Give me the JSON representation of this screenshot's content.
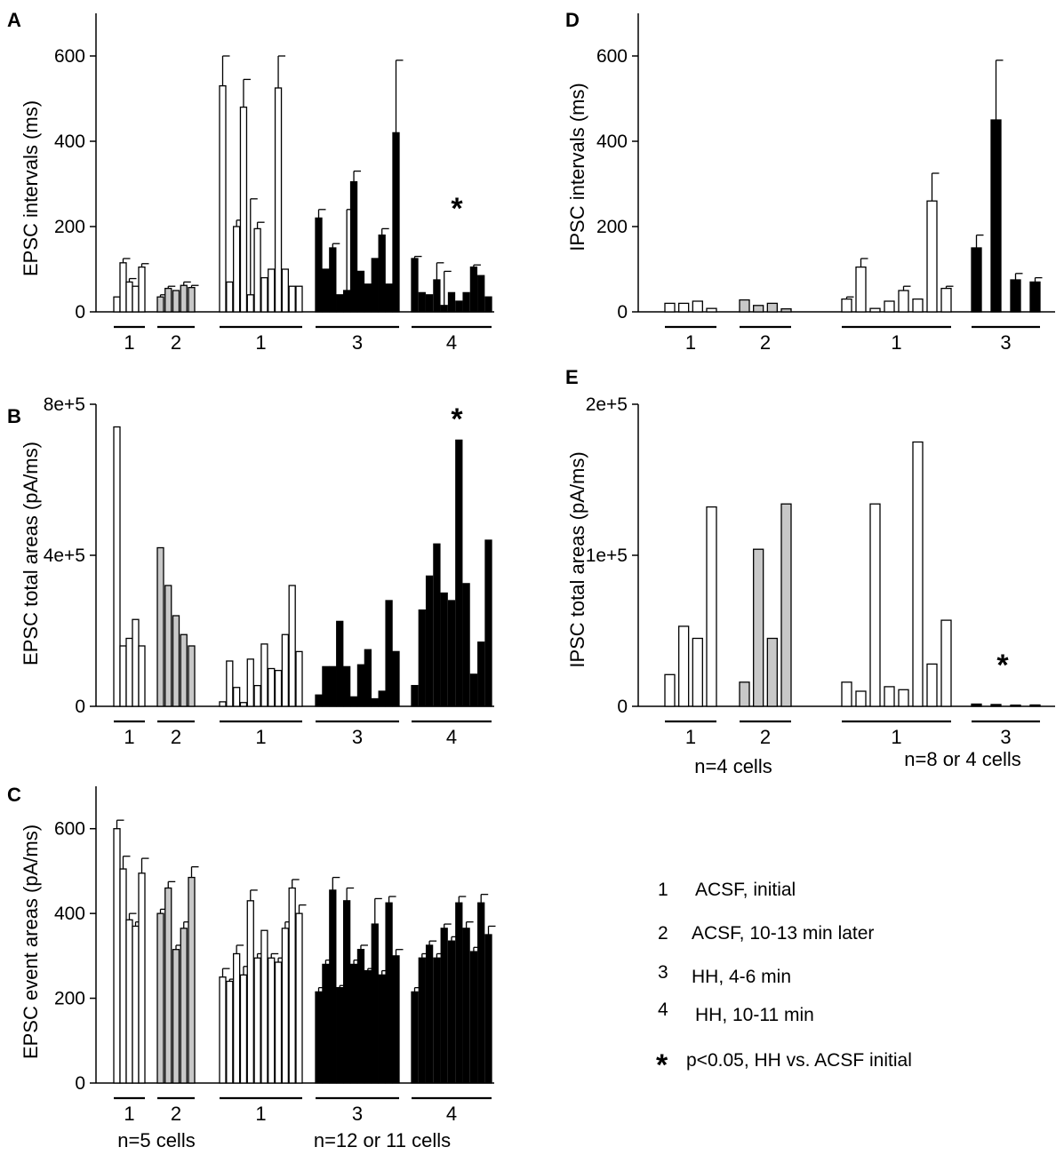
{
  "chart_data": [
    {
      "panel": "A",
      "type": "bar",
      "ylabel": "EPSC intervals (ms)",
      "ylim": [
        0,
        700
      ],
      "yticks": [
        "0",
        "200",
        "400",
        "600"
      ],
      "ytick_values": [
        0,
        200,
        400,
        600
      ],
      "star": "*",
      "star_group": 4,
      "groups": [
        {
          "label": "1",
          "fill": "white",
          "values": [
            35,
            115,
            70,
            60,
            105
          ],
          "errors": [
            0,
            10,
            8,
            0,
            8
          ]
        },
        {
          "label": "2",
          "fill": "grey",
          "values": [
            35,
            55,
            50,
            62,
            57
          ],
          "errors": [
            5,
            5,
            0,
            8,
            5
          ]
        },
        {
          "label": "1",
          "fill": "white",
          "values": [
            530,
            70,
            200,
            480,
            40,
            195,
            80,
            100,
            525,
            100,
            60,
            60
          ],
          "errors": [
            70,
            0,
            15,
            65,
            225,
            15,
            0,
            0,
            75,
            0,
            0,
            0
          ]
        },
        {
          "label": "3",
          "fill": "black",
          "values": [
            220,
            100,
            150,
            40,
            50,
            305,
            95,
            65,
            125,
            180,
            65,
            420
          ],
          "errors": [
            20,
            0,
            10,
            0,
            190,
            25,
            0,
            0,
            0,
            15,
            0,
            170
          ]
        },
        {
          "label": "4",
          "fill": "black",
          "values": [
            125,
            45,
            40,
            75,
            15,
            45,
            25,
            45,
            105,
            85,
            35
          ],
          "errors": [
            5,
            0,
            0,
            40,
            80,
            0,
            0,
            0,
            5,
            0,
            0
          ]
        }
      ]
    },
    {
      "panel": "B",
      "type": "bar",
      "ylabel": "EPSC total areas (pA/ms)",
      "ylim": [
        0,
        800000
      ],
      "yticks": [
        "0",
        "4e+5",
        "8e+5"
      ],
      "ytick_values": [
        0,
        400000,
        800000
      ],
      "star": "*",
      "star_group": 4,
      "groups": [
        {
          "label": "1",
          "fill": "white",
          "values": [
            740000,
            160000,
            180000,
            230000,
            160000
          ]
        },
        {
          "label": "2",
          "fill": "grey",
          "values": [
            420000,
            320000,
            240000,
            190000,
            160000
          ]
        },
        {
          "label": "1",
          "fill": "white",
          "values": [
            12000,
            120000,
            50000,
            10000,
            125000,
            55000,
            165000,
            100000,
            95000,
            190000,
            320000,
            145000
          ]
        },
        {
          "label": "3",
          "fill": "black",
          "values": [
            30000,
            105000,
            105000,
            225000,
            105000,
            25000,
            110000,
            150000,
            20000,
            40000,
            280000,
            145000
          ]
        },
        {
          "label": "4",
          "fill": "black",
          "values": [
            55000,
            255000,
            345000,
            430000,
            300000,
            280000,
            705000,
            325000,
            85000,
            170000,
            440000
          ]
        }
      ]
    },
    {
      "panel": "C",
      "type": "bar",
      "ylabel": "EPSC event areas (pA/ms)",
      "ylim": [
        0,
        700
      ],
      "yticks": [
        "0",
        "200",
        "400",
        "600"
      ],
      "ytick_values": [
        0,
        200,
        400,
        600
      ],
      "groups": [
        {
          "label": "1",
          "fill": "white",
          "values": [
            600,
            505,
            385,
            370,
            495
          ],
          "errors": [
            20,
            30,
            15,
            10,
            35
          ]
        },
        {
          "label": "2",
          "fill": "grey",
          "values": [
            400,
            460,
            315,
            365,
            485
          ],
          "errors": [
            10,
            15,
            10,
            15,
            25
          ]
        },
        {
          "label": "1",
          "fill": "white",
          "values": [
            250,
            240,
            305,
            255,
            430,
            295,
            360,
            295,
            285,
            365,
            460,
            400
          ],
          "errors": [
            20,
            5,
            20,
            20,
            25,
            10,
            0,
            10,
            10,
            15,
            20,
            20
          ]
        },
        {
          "label": "3",
          "fill": "black",
          "values": [
            215,
            280,
            455,
            225,
            430,
            280,
            315,
            265,
            375,
            255,
            425,
            300
          ],
          "errors": [
            10,
            10,
            30,
            5,
            30,
            10,
            10,
            5,
            60,
            10,
            15,
            15
          ]
        },
        {
          "label": "4",
          "fill": "black",
          "values": [
            215,
            295,
            325,
            295,
            365,
            335,
            425,
            365,
            310,
            425,
            350
          ],
          "errors": [
            10,
            10,
            10,
            10,
            10,
            10,
            15,
            15,
            10,
            20,
            20
          ]
        }
      ],
      "notes": [
        "n=5 cells",
        "n=12 or 11 cells"
      ]
    },
    {
      "panel": "D",
      "type": "bar",
      "ylabel": "IPSC intervals (ms)",
      "ylim": [
        0,
        700
      ],
      "yticks": [
        "0",
        "200",
        "400",
        "600"
      ],
      "ytick_values": [
        0,
        200,
        400,
        600
      ],
      "groups": [
        {
          "label": "1",
          "fill": "white",
          "values": [
            20,
            20,
            25,
            8
          ],
          "errors": [
            0,
            0,
            0,
            0
          ]
        },
        {
          "label": "2",
          "fill": "grey",
          "values": [
            28,
            15,
            20,
            7
          ],
          "errors": [
            0,
            0,
            0,
            0
          ]
        },
        {
          "label": "1",
          "fill": "white",
          "values": [
            30,
            105,
            8,
            25,
            50,
            30,
            260,
            55
          ],
          "errors": [
            5,
            20,
            0,
            0,
            10,
            0,
            65,
            5
          ]
        },
        {
          "label": "3",
          "fill": "black",
          "values": [
            150,
            450,
            75,
            70
          ],
          "errors": [
            30,
            140,
            15,
            10
          ]
        }
      ]
    },
    {
      "panel": "E",
      "type": "bar",
      "ylabel": "IPSC total areas (pA/ms)",
      "ylim": [
        0,
        200000
      ],
      "yticks": [
        "0",
        "1e+5",
        "2e+5"
      ],
      "ytick_values": [
        0,
        100000,
        200000
      ],
      "star": "*",
      "star_group": 3,
      "groups": [
        {
          "label": "1",
          "fill": "white",
          "values": [
            21000,
            53000,
            45000,
            132000
          ]
        },
        {
          "label": "2",
          "fill": "grey",
          "values": [
            16000,
            104000,
            45000,
            134000
          ]
        },
        {
          "label": "1",
          "fill": "white",
          "values": [
            16000,
            10000,
            134000,
            13000,
            11000,
            175000,
            28000,
            57000
          ]
        },
        {
          "label": "3",
          "fill": "black",
          "values": [
            1500,
            1200,
            800,
            900
          ]
        }
      ],
      "notes": [
        "n=4 cells",
        "n=8 or 4 cells"
      ]
    }
  ],
  "legend": [
    {
      "key": "1",
      "text": "ACSF, initial"
    },
    {
      "key": "2",
      "text": "ACSF, 10-13 min later"
    },
    {
      "key": "3",
      "text": "HH, 4-6 min"
    },
    {
      "key": "4",
      "text": "HH, 10-11 min"
    },
    {
      "key": "*",
      "text": "p<0.05, HH vs. ACSF initial"
    }
  ],
  "colors": {
    "black": "#000000",
    "grey": "#c8c8c8",
    "white": "#ffffff"
  }
}
